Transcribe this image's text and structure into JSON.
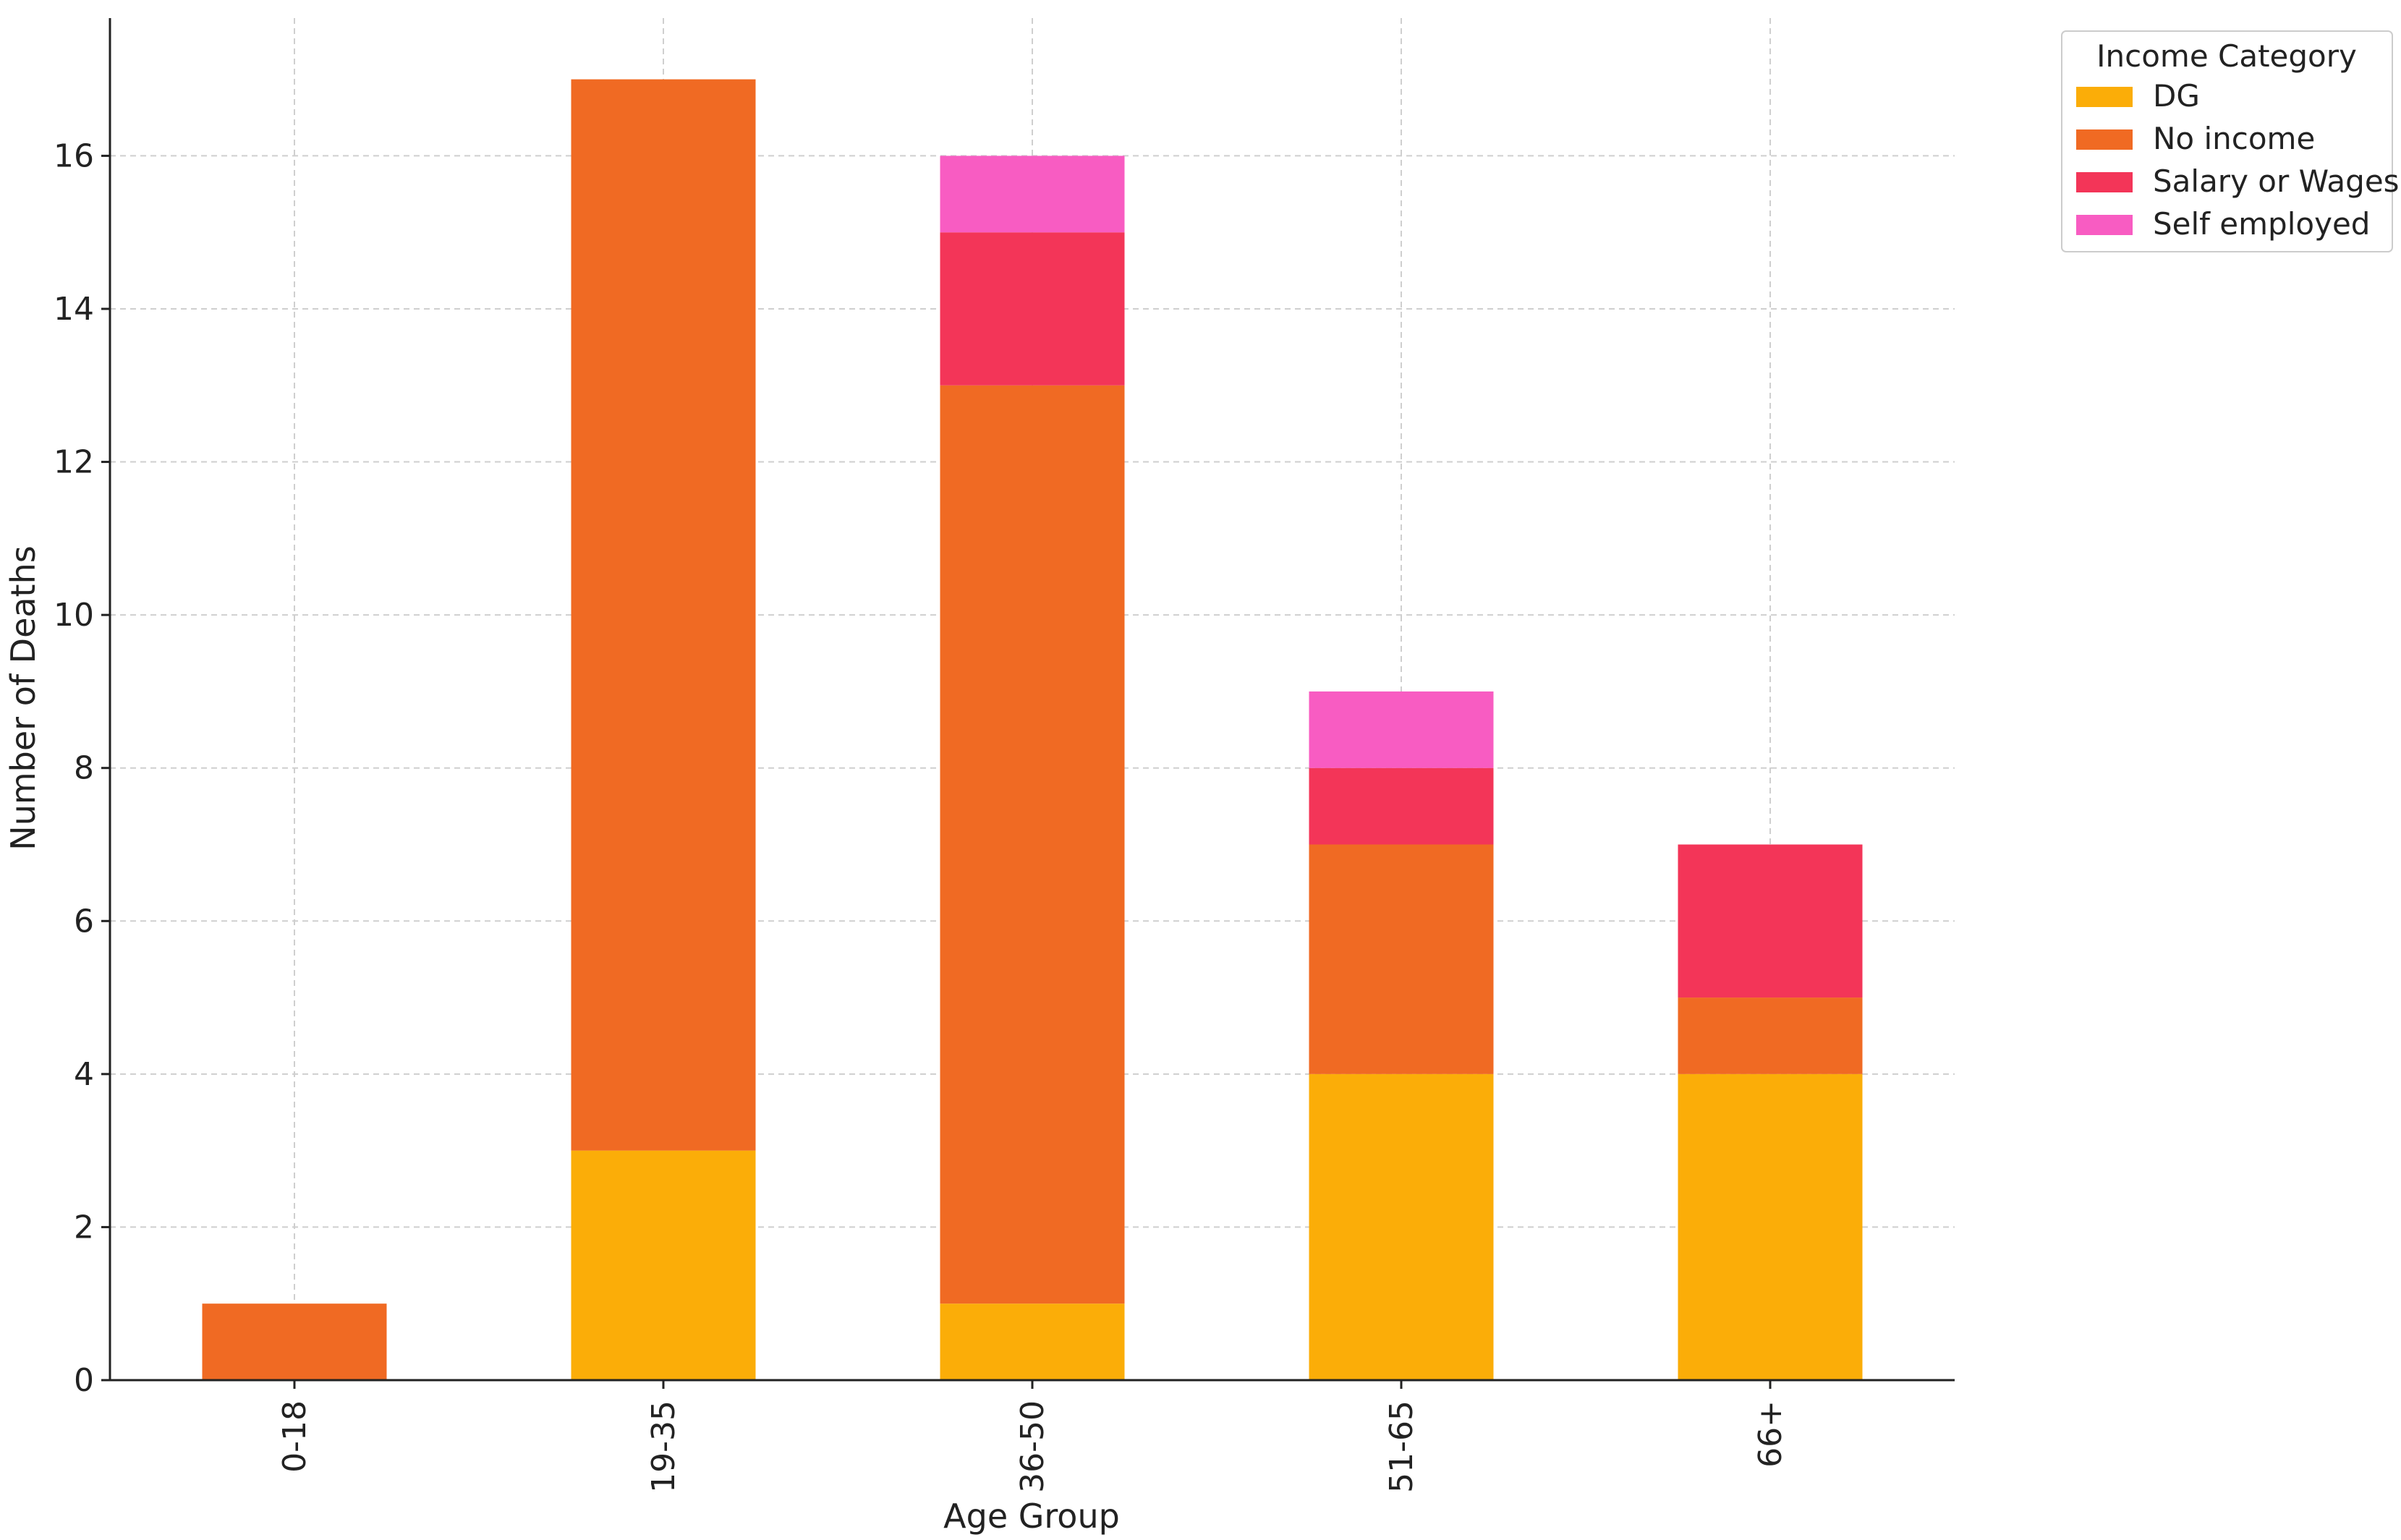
{
  "chart_data": {
    "type": "bar",
    "stacked": true,
    "title": "",
    "xlabel": "Age Group",
    "ylabel": "Number of Deaths",
    "categories": [
      "0-18",
      "19-35",
      "36-50",
      "51-65",
      "66+"
    ],
    "ylim": [
      0,
      17.8
    ],
    "yticks": [
      0,
      2,
      4,
      6,
      8,
      10,
      12,
      14,
      16
    ],
    "grid": true,
    "legend": {
      "title": "Income Category",
      "position": "top-right, outside plot"
    },
    "series": [
      {
        "name": "DG",
        "color": "#FBAD08",
        "values": [
          0,
          3,
          1,
          4,
          4
        ]
      },
      {
        "name": "No income",
        "color": "#F06A23",
        "values": [
          1,
          14,
          12,
          3,
          1
        ]
      },
      {
        "name": "Salary or Wages",
        "color": "#F33558",
        "values": [
          0,
          0,
          2,
          1,
          2
        ]
      },
      {
        "name": "Self employed",
        "color": "#F85CC2",
        "values": [
          0,
          0,
          1,
          1,
          0
        ]
      }
    ]
  }
}
